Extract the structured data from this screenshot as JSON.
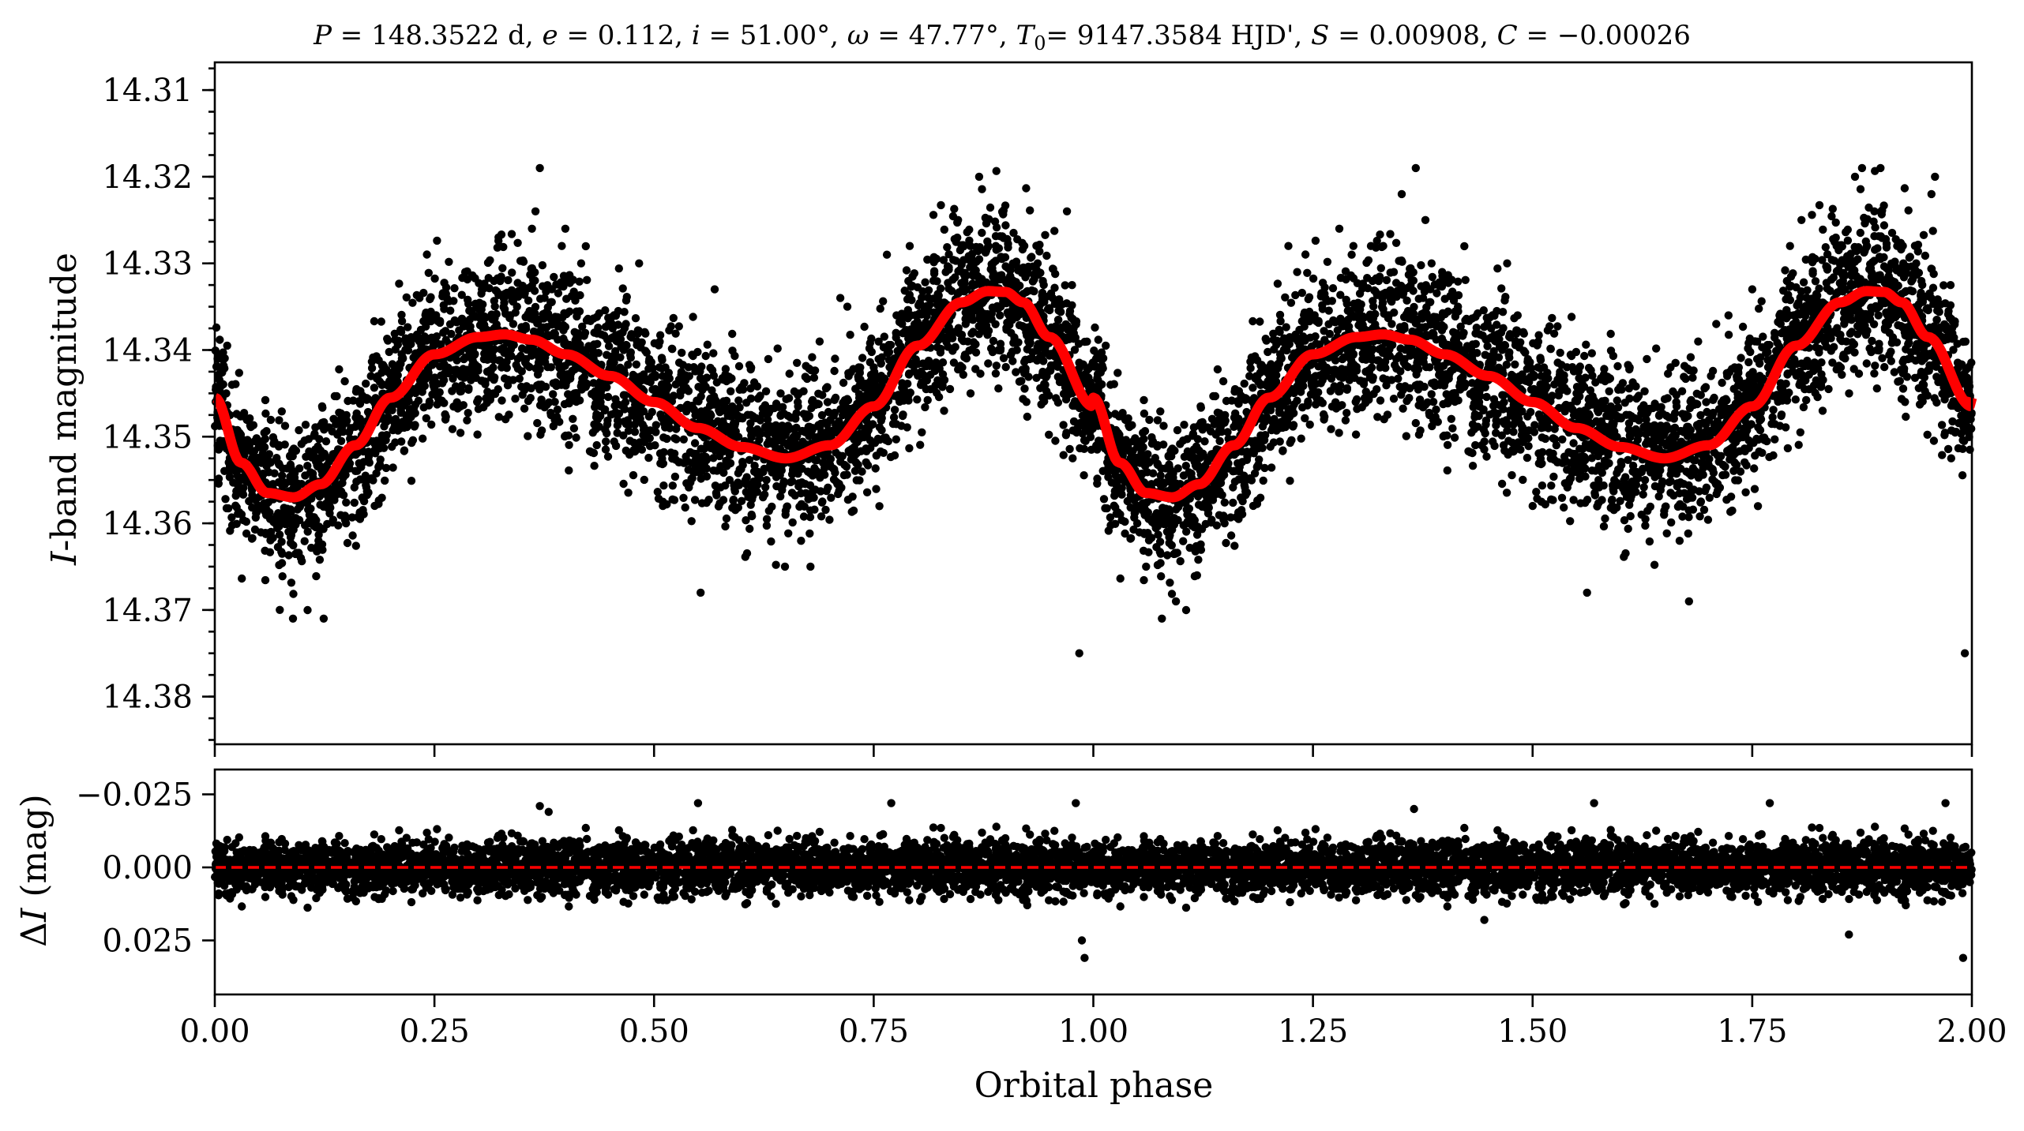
{
  "chart_data": [
    {
      "type": "scatter",
      "panel": "top",
      "title": "P = 148.3522 d, e = 0.112, i = 51.00°, ω = 47.77°, T0 = 9147.3584 HJD', S = 0.00908, C = −0.00026",
      "title_parts": {
        "p_var": "P",
        "p_val": "148.3522 d,",
        "e_var": "e",
        "e_val": "0.112,",
        "i_var": "i",
        "i_val": "51.00°,",
        "w_var": "ω",
        "w_val": "47.77°,",
        "t_var": "T",
        "t_sub": "0",
        "t_val": "9147.3584 HJD',",
        "s_var": "S",
        "s_val": "0.00908,",
        "c_var": "C",
        "c_val": "−0.00026",
        "equals": "="
      },
      "ylabel_italic": "I",
      "ylabel_rest": "-band magnitude",
      "xlabel": "",
      "xlim": [
        0.0,
        2.0
      ],
      "ylim": [
        14.3855,
        14.3068
      ],
      "y_inverted": true,
      "yticks": [
        "14.31",
        "14.32",
        "14.33",
        "14.34",
        "14.35",
        "14.36",
        "14.37",
        "14.38"
      ],
      "ytick_values": [
        14.31,
        14.32,
        14.33,
        14.34,
        14.35,
        14.36,
        14.37,
        14.38
      ],
      "xticks": [
        0.0,
        0.25,
        0.5,
        0.75,
        1.0,
        1.25,
        1.5,
        1.75,
        2.0
      ],
      "series": [
        {
          "kind": "points",
          "color": "#000000",
          "description_from_image": "dense black photometric points following the model with scatter of about ±0.01 mag"
        },
        {
          "kind": "model-curve",
          "color": "#ff0000",
          "x": [
            0.0,
            0.03,
            0.06,
            0.09,
            0.12,
            0.16,
            0.2,
            0.25,
            0.3,
            0.33,
            0.36,
            0.4,
            0.45,
            0.5,
            0.55,
            0.6,
            0.65,
            0.7,
            0.75,
            0.8,
            0.85,
            0.88,
            0.9,
            0.92,
            0.95,
            1.0
          ],
          "y": [
            14.3455,
            14.353,
            14.3565,
            14.357,
            14.3555,
            14.351,
            14.3455,
            14.3405,
            14.3385,
            14.3382,
            14.3388,
            14.3405,
            14.343,
            14.346,
            14.349,
            14.3512,
            14.3525,
            14.351,
            14.3465,
            14.3395,
            14.3345,
            14.3332,
            14.3333,
            14.3345,
            14.3385,
            14.3465
          ]
        }
      ],
      "scatter_points": [
        [
          0.013,
          14.345
        ],
        [
          0.026,
          14.352
        ],
        [
          0.045,
          14.353
        ],
        [
          0.064,
          14.361
        ],
        [
          0.074,
          14.37
        ],
        [
          0.089,
          14.371
        ],
        [
          0.098,
          14.364
        ],
        [
          0.118,
          14.362
        ],
        [
          0.124,
          14.371
        ],
        [
          0.142,
          14.353
        ],
        [
          0.155,
          14.349
        ],
        [
          0.176,
          14.353
        ],
        [
          0.201,
          14.346
        ],
        [
          0.218,
          14.339
        ],
        [
          0.233,
          14.334
        ],
        [
          0.248,
          14.339
        ],
        [
          0.26,
          14.338
        ],
        [
          0.285,
          14.331
        ],
        [
          0.304,
          14.333
        ],
        [
          0.317,
          14.345
        ],
        [
          0.323,
          14.327
        ],
        [
          0.344,
          14.335
        ],
        [
          0.361,
          14.326
        ],
        [
          0.365,
          14.324
        ],
        [
          0.37,
          14.319
        ],
        [
          0.384,
          14.34
        ],
        [
          0.395,
          14.328
        ],
        [
          0.399,
          14.326
        ],
        [
          0.417,
          14.33
        ],
        [
          0.432,
          14.338
        ],
        [
          0.436,
          14.348
        ],
        [
          0.452,
          14.337
        ],
        [
          0.468,
          14.337
        ],
        [
          0.478,
          14.347
        ],
        [
          0.483,
          14.33
        ],
        [
          0.501,
          14.351
        ],
        [
          0.51,
          14.358
        ],
        [
          0.525,
          14.347
        ],
        [
          0.54,
          14.343
        ],
        [
          0.553,
          14.368
        ],
        [
          0.569,
          14.333
        ],
        [
          0.578,
          14.347
        ],
        [
          0.586,
          14.355
        ],
        [
          0.611,
          14.359
        ],
        [
          0.612,
          14.351
        ],
        [
          0.624,
          14.357
        ],
        [
          0.644,
          14.345
        ],
        [
          0.649,
          14.365
        ],
        [
          0.665,
          14.345
        ],
        [
          0.678,
          14.365
        ],
        [
          0.681,
          14.349
        ],
        [
          0.701,
          14.35
        ],
        [
          0.706,
          14.341
        ],
        [
          0.712,
          14.334
        ],
        [
          0.72,
          14.335
        ],
        [
          0.733,
          14.342
        ],
        [
          0.75,
          14.342
        ],
        [
          0.765,
          14.329
        ],
        [
          0.776,
          14.336
        ],
        [
          0.791,
          14.328
        ],
        [
          0.807,
          14.335
        ],
        [
          0.818,
          14.332
        ],
        [
          0.832,
          14.331
        ],
        [
          0.846,
          14.325
        ],
        [
          0.86,
          14.328
        ],
        [
          0.87,
          14.32
        ],
        [
          0.889,
          14.328
        ],
        [
          0.9,
          14.332
        ],
        [
          0.913,
          14.34
        ],
        [
          0.926,
          14.339
        ],
        [
          0.938,
          14.341
        ],
        [
          0.947,
          14.343
        ],
        [
          0.962,
          14.339
        ],
        [
          0.97,
          14.324
        ],
        [
          0.982,
          14.349
        ],
        [
          0.984,
          14.375
        ],
        [
          0.993,
          14.348
        ],
        [
          1.009,
          14.348
        ],
        [
          1.02,
          14.349
        ],
        [
          1.04,
          14.353
        ],
        [
          1.05,
          14.36
        ],
        [
          1.06,
          14.365
        ],
        [
          1.078,
          14.371
        ],
        [
          1.094,
          14.369
        ],
        [
          1.107,
          14.359
        ],
        [
          1.118,
          14.366
        ],
        [
          1.124,
          14.356
        ],
        [
          1.143,
          14.355
        ],
        [
          1.159,
          14.354
        ],
        [
          1.166,
          14.354
        ],
        [
          1.187,
          14.343
        ],
        [
          1.2,
          14.342
        ],
        [
          1.214,
          14.339
        ],
        [
          1.222,
          14.328
        ],
        [
          1.232,
          14.331
        ],
        [
          1.253,
          14.343
        ],
        [
          1.264,
          14.343
        ],
        [
          1.28,
          14.326
        ],
        [
          1.294,
          14.329
        ],
        [
          1.296,
          14.328
        ],
        [
          1.316,
          14.328
        ],
        [
          1.33,
          14.328
        ],
        [
          1.342,
          14.331
        ],
        [
          1.351,
          14.322
        ],
        [
          1.367,
          14.319
        ],
        [
          1.378,
          14.325
        ],
        [
          1.385,
          14.33
        ],
        [
          1.397,
          14.331
        ],
        [
          1.415,
          14.335
        ],
        [
          1.423,
          14.341
        ],
        [
          1.442,
          14.351
        ],
        [
          1.451,
          14.342
        ],
        [
          1.467,
          14.351
        ],
        [
          1.471,
          14.33
        ],
        [
          1.483,
          14.336
        ],
        [
          1.5,
          14.358
        ],
        [
          1.51,
          14.349
        ],
        [
          1.527,
          14.351
        ],
        [
          1.542,
          14.355
        ],
        [
          1.55,
          14.345
        ],
        [
          1.562,
          14.368
        ],
        [
          1.575,
          14.355
        ],
        [
          1.593,
          14.355
        ],
        [
          1.603,
          14.356
        ],
        [
          1.61,
          14.351
        ],
        [
          1.624,
          14.359
        ],
        [
          1.639,
          14.35
        ],
        [
          1.653,
          14.352
        ],
        [
          1.657,
          14.342
        ],
        [
          1.678,
          14.369
        ],
        [
          1.688,
          14.351
        ],
        [
          1.703,
          14.343
        ],
        [
          1.709,
          14.337
        ],
        [
          1.723,
          14.336
        ],
        [
          1.73,
          14.342
        ],
        [
          1.75,
          14.333
        ],
        [
          1.753,
          14.339
        ],
        [
          1.76,
          14.348
        ],
        [
          1.781,
          14.336
        ],
        [
          1.793,
          14.328
        ],
        [
          1.806,
          14.325
        ],
        [
          1.818,
          14.335
        ],
        [
          1.829,
          14.336
        ],
        [
          1.846,
          14.328
        ],
        [
          1.855,
          14.33
        ],
        [
          1.867,
          14.32
        ],
        [
          1.875,
          14.319
        ],
        [
          1.889,
          14.324
        ],
        [
          1.896,
          14.319
        ],
        [
          1.915,
          14.328
        ],
        [
          1.922,
          14.33
        ],
        [
          1.934,
          14.338
        ],
        [
          1.946,
          14.341
        ],
        [
          1.954,
          14.322
        ],
        [
          1.958,
          14.32
        ],
        [
          1.974,
          14.342
        ],
        [
          1.992,
          14.375
        ]
      ]
    },
    {
      "type": "scatter",
      "panel": "bottom",
      "ylabel_prefix": "Δ",
      "ylabel_italic": "I",
      "ylabel_rest": " (mag)",
      "xlabel": "Orbital phase",
      "xlim": [
        0.0,
        2.0
      ],
      "ylim": [
        0.0435,
        -0.0335
      ],
      "y_inverted": true,
      "yticks": [
        "−0.025",
        "0.000",
        "0.025"
      ],
      "ytick_values": [
        -0.025,
        0.0,
        0.025
      ],
      "xticks": [
        "0.00",
        "0.25",
        "0.50",
        "0.75",
        "1.00",
        "1.25",
        "1.50",
        "1.75",
        "2.00"
      ],
      "xtick_values": [
        0.0,
        0.25,
        0.5,
        0.75,
        1.0,
        1.25,
        1.5,
        1.75,
        2.0
      ],
      "series": [
        {
          "kind": "residuals",
          "color": "#000000",
          "description_from_image": "residuals scattered about zero, mostly within ±0.015 mag"
        },
        {
          "kind": "zero-line",
          "style": "dashed",
          "color": "#ff0000",
          "y": 0.0
        }
      ],
      "outliers": [
        [
          0.98,
          -0.022
        ],
        [
          0.987,
          0.025
        ],
        [
          0.99,
          0.031
        ],
        [
          0.37,
          -0.021
        ],
        [
          0.38,
          -0.019
        ],
        [
          0.55,
          -0.022
        ],
        [
          0.77,
          -0.022
        ],
        [
          1.365,
          -0.02
        ],
        [
          1.57,
          -0.022
        ],
        [
          1.77,
          -0.022
        ],
        [
          1.97,
          -0.022
        ],
        [
          1.99,
          0.031
        ],
        [
          1.445,
          0.018
        ],
        [
          1.86,
          0.023
        ]
      ]
    }
  ]
}
